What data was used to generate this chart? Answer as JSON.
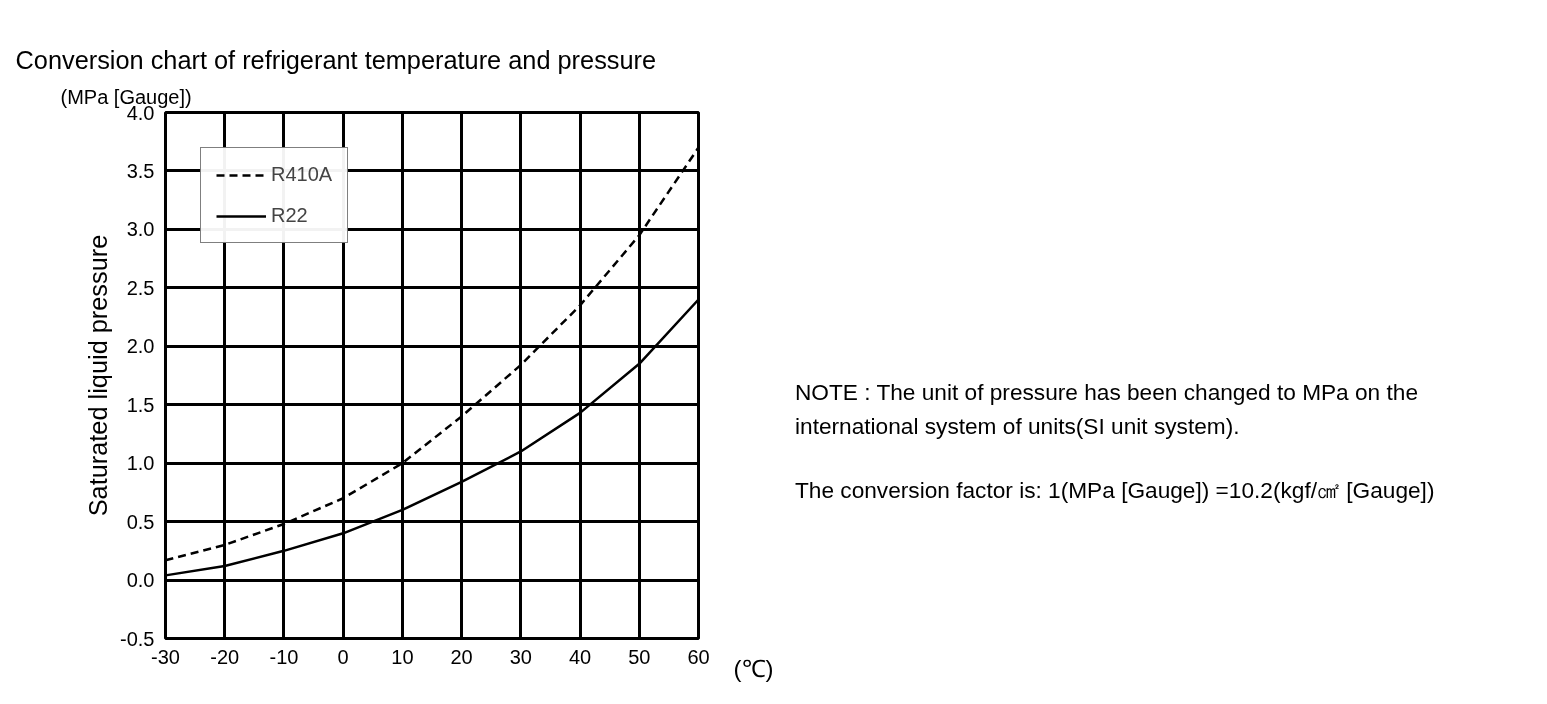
{
  "chart_data": {
    "type": "line",
    "title": "Conversion chart of refrigerant temperature and pressure",
    "ylabel": "Saturated liquid pressure",
    "xlabel": "(℃)",
    "annotations": [
      "(MPa [Gauge])",
      "NOTE : The unit of pressure has been changed to MPa on the international system of units(SI unit system).",
      "The conversion factor is: 1(MPa [Gauge]) =10.2(kgf/㎠ [Gauge])"
    ],
    "x": [
      -30,
      -20,
      -10,
      0,
      10,
      20,
      30,
      40,
      50,
      60
    ],
    "series": [
      {
        "name": "R410A",
        "color": "#000000",
        "line_style": "dashed",
        "values": [
          0.17,
          0.3,
          0.48,
          0.7,
          1.0,
          1.4,
          1.84,
          2.35,
          2.95,
          3.7
        ]
      },
      {
        "name": "R22",
        "color": "#000000",
        "line_style": "solid",
        "values": [
          0.04,
          0.12,
          0.25,
          0.4,
          0.6,
          0.84,
          1.1,
          1.43,
          1.85,
          2.4
        ]
      }
    ],
    "xlim": [
      -30,
      60
    ],
    "xticks": [
      -30,
      -20,
      -10,
      0,
      10,
      20,
      30,
      40,
      50,
      60
    ],
    "ylim": [
      -0.5,
      4.0
    ],
    "yticks": [
      {
        "value": -0.5,
        "label": "-0.5"
      },
      {
        "value": 0,
        "label": "0.0"
      },
      {
        "value": 0.5,
        "label": "0.5"
      },
      {
        "value": 1,
        "label": "1.0"
      },
      {
        "value": 1.5,
        "label": "1.5"
      },
      {
        "value": 2,
        "label": "2.0"
      },
      {
        "value": 2.5,
        "label": "2.5"
      },
      {
        "value": 3,
        "label": "3.0"
      },
      {
        "value": 3.5,
        "label": "3.5"
      },
      {
        "value": 4,
        "label": "4.0"
      }
    ],
    "grid": true,
    "legend": "top left",
    "marker": "none"
  }
}
